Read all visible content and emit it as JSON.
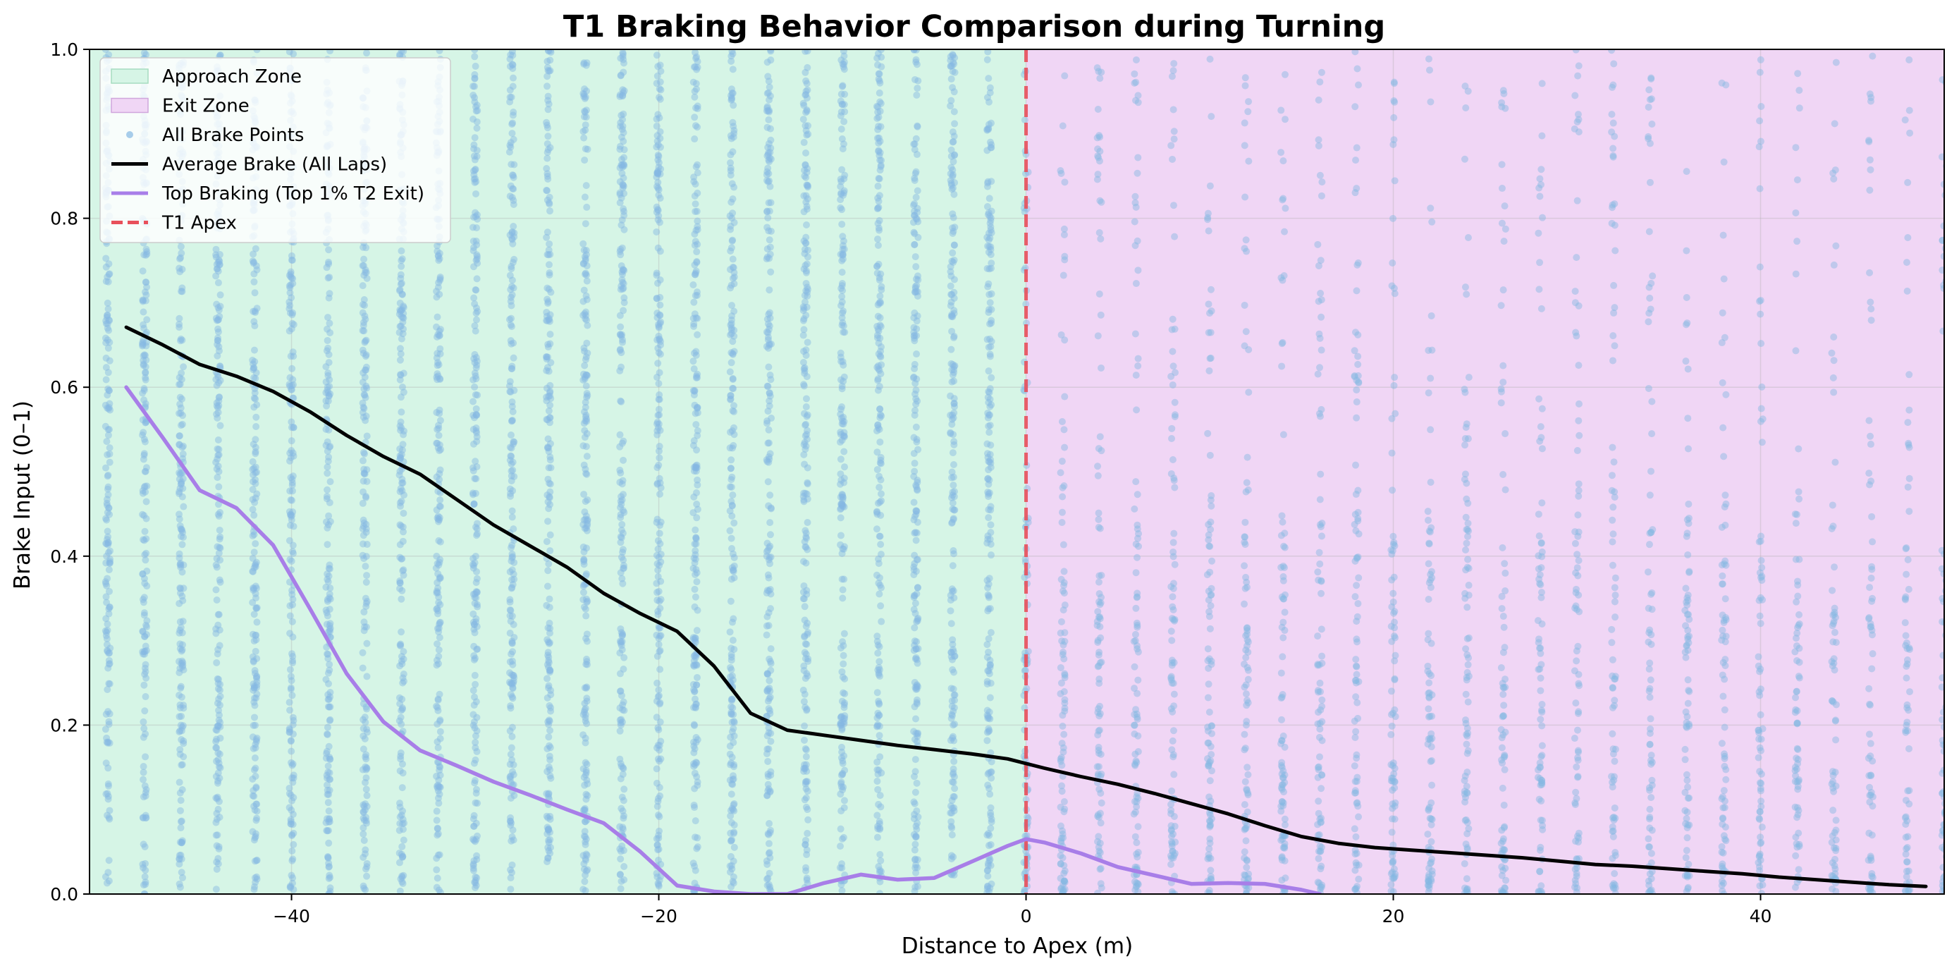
{
  "chart_data": {
    "type": "line",
    "title": "T1 Braking Behavior Comparison during Turning",
    "xlabel": "Distance to Apex (m)",
    "ylabel": "Brake Input (0–1)",
    "xlim": [
      -51,
      50
    ],
    "ylim": [
      0,
      1
    ],
    "x_ticks": [
      -40,
      -20,
      0,
      20,
      40
    ],
    "x_tick_labels": [
      "−40",
      "−20",
      "0",
      "20",
      "40"
    ],
    "y_ticks": [
      0.0,
      0.2,
      0.4,
      0.6,
      0.8,
      1.0
    ],
    "y_tick_labels": [
      "0.0",
      "0.2",
      "0.4",
      "0.6",
      "0.8",
      "1.0"
    ],
    "grid": true,
    "legend_position": "top-left",
    "zones": [
      {
        "name": "Approach Zone",
        "x_range": [
          -51,
          0
        ],
        "color": "#d6f5e6"
      },
      {
        "name": "Exit Zone",
        "x_range": [
          0,
          50
        ],
        "color": "#f0d6f5"
      }
    ],
    "apex_line": {
      "name": "T1 Apex",
      "x": 0,
      "color": "#e8505b"
    },
    "scatter": {
      "name": "All Brake Points",
      "color": "#85b8e3",
      "x_step": 2,
      "x_range": [
        -50,
        50
      ]
    },
    "series": [
      {
        "name": "Average Brake (All Laps)",
        "color": "#000000",
        "x": [
          -49,
          -47,
          -45,
          -43,
          -41,
          -39,
          -37,
          -35,
          -33,
          -31,
          -29,
          -27,
          -25,
          -23,
          -21,
          -19,
          -17,
          -15,
          -13,
          -11,
          -9,
          -7,
          -5,
          -3,
          -1,
          1,
          3,
          5,
          7,
          9,
          11,
          13,
          15,
          17,
          19,
          21,
          23,
          25,
          27,
          29,
          31,
          33,
          35,
          37,
          39,
          41,
          43,
          45,
          47,
          49
        ],
        "y": [
          0.671,
          0.65,
          0.627,
          0.613,
          0.595,
          0.571,
          0.543,
          0.518,
          0.497,
          0.467,
          0.437,
          0.412,
          0.387,
          0.356,
          0.332,
          0.311,
          0.27,
          0.214,
          0.194,
          0.188,
          0.182,
          0.176,
          0.171,
          0.166,
          0.16,
          0.149,
          0.139,
          0.13,
          0.119,
          0.107,
          0.095,
          0.081,
          0.068,
          0.06,
          0.055,
          0.052,
          0.049,
          0.046,
          0.043,
          0.039,
          0.035,
          0.033,
          0.03,
          0.027,
          0.024,
          0.02,
          0.017,
          0.014,
          0.011,
          0.009
        ]
      },
      {
        "name": "Top Braking (Top 1% T2 Exit)",
        "color": "#a87ee8",
        "x": [
          -49,
          -47,
          -45,
          -43,
          -41,
          -39,
          -37,
          -35,
          -33,
          -31,
          -29,
          -27,
          -25,
          -23,
          -21,
          -19,
          -17,
          -15,
          -13,
          -11,
          -9,
          -7,
          -5,
          -3,
          -1,
          0,
          1,
          3,
          5,
          7,
          9,
          11,
          13,
          15,
          16
        ],
        "y": [
          0.6,
          0.54,
          0.478,
          0.457,
          0.413,
          0.338,
          0.261,
          0.204,
          0.17,
          0.152,
          0.133,
          0.117,
          0.1,
          0.084,
          0.05,
          0.01,
          0.003,
          0.0,
          0.0,
          0.013,
          0.023,
          0.017,
          0.019,
          0.038,
          0.057,
          0.065,
          0.061,
          0.048,
          0.032,
          0.022,
          0.012,
          0.013,
          0.012,
          0.005,
          0.0
        ]
      }
    ]
  },
  "legend": {
    "items": [
      {
        "label": "Approach Zone",
        "kind": "patch",
        "color": "#d6f5e6",
        "edge": "#a6dcc0"
      },
      {
        "label": "Exit Zone",
        "kind": "patch",
        "color": "#f0d6f5",
        "edge": "#cfa6dc"
      },
      {
        "label": "All Brake Points",
        "kind": "marker",
        "color": "#85b8e3"
      },
      {
        "label": "Average Brake (All Laps)",
        "kind": "line",
        "color": "#000000"
      },
      {
        "label": "Top Braking (Top 1% T2 Exit)",
        "kind": "line",
        "color": "#a87ee8"
      },
      {
        "label": "T1 Apex",
        "kind": "dash",
        "color": "#e8505b"
      }
    ]
  }
}
